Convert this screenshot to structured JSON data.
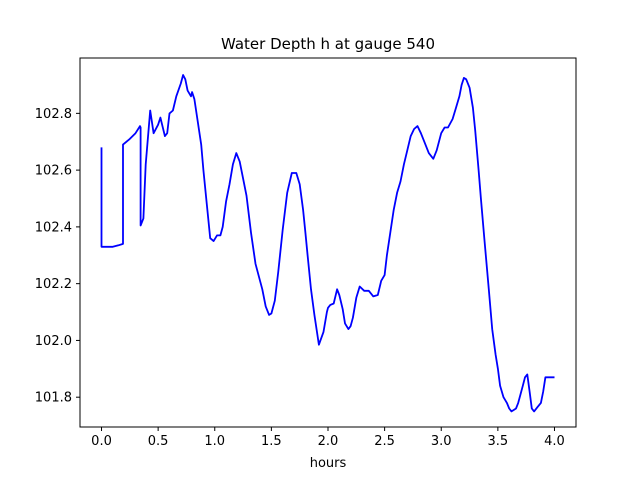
{
  "chart_data": {
    "type": "line",
    "title": "Water Depth h at gauge 540",
    "xlabel": "hours",
    "ylabel": "",
    "xlim": [
      -0.19,
      4.19
    ],
    "ylim": [
      101.695,
      102.995
    ],
    "xticks": [
      0.0,
      0.5,
      1.0,
      1.5,
      2.0,
      2.5,
      3.0,
      3.5,
      4.0
    ],
    "xtick_labels": [
      "0.0",
      "0.5",
      "1.0",
      "1.5",
      "2.0",
      "2.5",
      "3.0",
      "3.5",
      "4.0"
    ],
    "yticks": [
      101.8,
      102.0,
      102.2,
      102.4,
      102.6,
      102.8
    ],
    "ytick_labels": [
      "101.8",
      "102.0",
      "102.2",
      "102.4",
      "102.6",
      "102.8"
    ],
    "grid": false,
    "legend": "none",
    "series": [
      {
        "color": "#0000ff",
        "x": [
          0.0,
          0.0,
          0.02,
          0.1,
          0.15,
          0.19,
          0.19,
          0.25,
          0.3,
          0.34,
          0.345,
          0.345,
          0.37,
          0.39,
          0.43,
          0.46,
          0.5,
          0.52,
          0.56,
          0.58,
          0.6,
          0.63,
          0.66,
          0.7,
          0.72,
          0.74,
          0.76,
          0.79,
          0.8,
          0.82,
          0.85,
          0.88,
          0.9,
          0.93,
          0.96,
          0.99,
          1.02,
          1.05,
          1.07,
          1.1,
          1.13,
          1.16,
          1.19,
          1.22,
          1.25,
          1.28,
          1.32,
          1.36,
          1.42,
          1.45,
          1.48,
          1.5,
          1.53,
          1.56,
          1.6,
          1.64,
          1.68,
          1.72,
          1.75,
          1.78,
          1.8,
          1.82,
          1.85,
          1.88,
          1.92,
          1.96,
          1.99,
          2.0,
          2.02,
          2.05,
          2.08,
          2.1,
          2.13,
          2.15,
          2.18,
          2.2,
          2.22,
          2.25,
          2.28,
          2.32,
          2.36,
          2.4,
          2.44,
          2.47,
          2.5,
          2.52,
          2.55,
          2.58,
          2.61,
          2.64,
          2.67,
          2.7,
          2.73,
          2.76,
          2.79,
          2.82,
          2.85,
          2.89,
          2.93,
          2.96,
          3.0,
          3.03,
          3.06,
          3.1,
          3.13,
          3.16,
          3.18,
          3.2,
          3.22,
          3.25,
          3.28,
          3.3,
          3.33,
          3.35,
          3.38,
          3.42,
          3.45,
          3.48,
          3.5,
          3.52,
          3.55,
          3.58,
          3.6,
          3.62,
          3.64,
          3.66,
          3.68,
          3.7,
          3.72,
          3.74,
          3.76,
          3.78,
          3.8,
          3.82,
          3.85,
          3.88,
          3.9,
          3.92,
          3.94,
          3.96,
          3.98,
          4.0
        ],
        "y": [
          102.68,
          102.33,
          102.33,
          102.33,
          102.335,
          102.34,
          102.69,
          102.71,
          102.73,
          102.755,
          102.75,
          102.405,
          102.43,
          102.62,
          102.81,
          102.73,
          102.76,
          102.785,
          102.72,
          102.73,
          102.8,
          102.81,
          102.86,
          102.905,
          102.935,
          102.92,
          102.88,
          102.86,
          102.875,
          102.85,
          102.77,
          102.69,
          102.6,
          102.48,
          102.36,
          102.35,
          102.37,
          102.37,
          102.4,
          102.49,
          102.55,
          102.62,
          102.66,
          102.63,
          102.57,
          102.51,
          102.38,
          102.27,
          102.18,
          102.12,
          102.09,
          102.095,
          102.14,
          102.24,
          102.39,
          102.52,
          102.59,
          102.59,
          102.55,
          102.46,
          102.38,
          102.3,
          102.18,
          102.09,
          101.985,
          102.03,
          102.1,
          102.115,
          102.125,
          102.13,
          102.18,
          102.16,
          102.11,
          102.06,
          102.04,
          102.05,
          102.08,
          102.15,
          102.19,
          102.175,
          102.175,
          102.155,
          102.16,
          102.21,
          102.23,
          102.3,
          102.38,
          102.46,
          102.52,
          102.56,
          102.62,
          102.67,
          102.72,
          102.745,
          102.755,
          102.73,
          102.7,
          102.66,
          102.64,
          102.67,
          102.73,
          102.75,
          102.75,
          102.78,
          102.82,
          102.86,
          102.9,
          102.925,
          102.92,
          102.89,
          102.82,
          102.74,
          102.6,
          102.5,
          102.36,
          102.18,
          102.04,
          101.95,
          101.9,
          101.84,
          101.8,
          101.78,
          101.76,
          101.75,
          101.755,
          101.76,
          101.78,
          101.81,
          101.84,
          101.87,
          101.88,
          101.82,
          101.76,
          101.75,
          101.765,
          101.78,
          101.82,
          101.87,
          101.87,
          101.87,
          101.87,
          101.87
        ]
      }
    ]
  }
}
